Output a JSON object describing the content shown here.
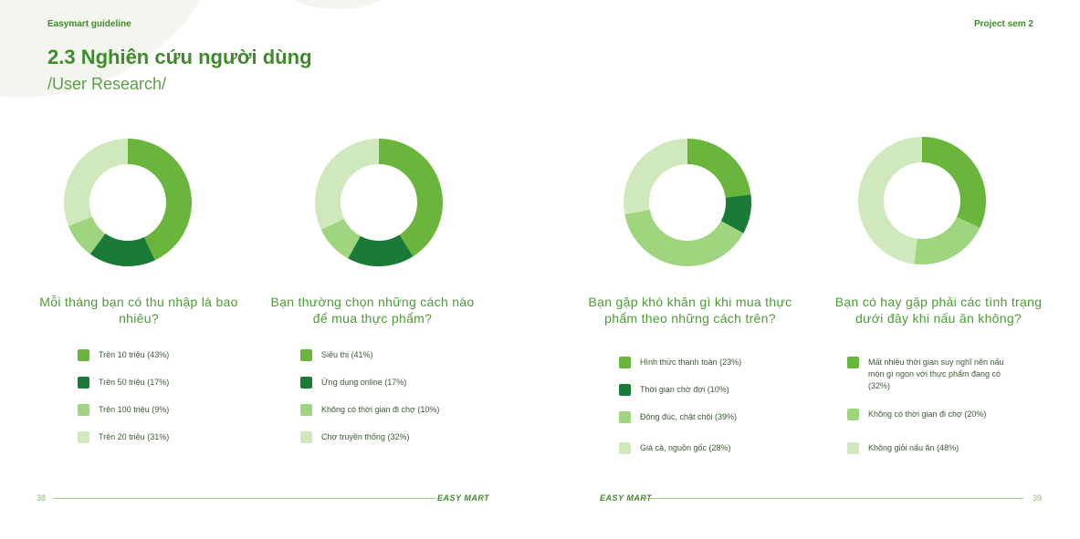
{
  "header": {
    "left_label": "Easymart guideline",
    "right_label": "Project sem 2"
  },
  "title": "2.3 Nghiên cứu người dùng",
  "subtitle": "/User Research/",
  "charts": [
    {
      "question": "Mỗi tháng bạn có thu nhập là bao nhiêu?",
      "legend": [
        {
          "label": "Trên 10 triệu (43%)",
          "color": "#6ab53c"
        },
        {
          "label": "Trên 50 triệu (17%)",
          "color": "#1a7a38"
        },
        {
          "label": "Trên 100 triệu (9%)",
          "color": "#9fd57e"
        },
        {
          "label": "Trên 20 triệu (31%)",
          "color": "#cfe9bd"
        }
      ]
    },
    {
      "question": "Bạn thường chọn những cách nào để mua thực phẩm?",
      "legend": [
        {
          "label": "Siêu thị (41%)",
          "color": "#6ab53c"
        },
        {
          "label": "Ứng dụng online (17%)",
          "color": "#1a7a38"
        },
        {
          "label": "Không có thời gian đi chợ (10%)",
          "color": "#9fd57e"
        },
        {
          "label": "Chợ truyền thống (32%)",
          "color": "#cfe9bd"
        }
      ]
    },
    {
      "question": "Bạn gặp khó khăn gì khi mua thực phẩm theo những  cách trên?",
      "legend": [
        {
          "label": "Hình thức thanh toán (23%)",
          "color": "#6ab53c"
        },
        {
          "label": "Thời gian chờ đợi (10%)",
          "color": "#1a7a38"
        },
        {
          "label": "Đông đúc, chật chội (39%)",
          "color": "#9fd57e"
        },
        {
          "label": "Giá cả, nguồn gốc (28%)",
          "color": "#cfe9bd"
        }
      ]
    },
    {
      "question": "Bạn có hay gặp phải các tình trạng dưới đây khi nấu ăn không?",
      "legend": [
        {
          "label": "Mất nhiều thời gian suy nghĩ nên nấu món gì ngon với thực phẩm đang có (32%)",
          "color": "#6ab53c"
        },
        {
          "label": "Không có thời gian đi chợ (20%)",
          "color": "#9fd57e"
        },
        {
          "label": "Không giỏi nấu ăn (48%)",
          "color": "#cfe9bd"
        }
      ]
    }
  ],
  "chart_data": [
    {
      "type": "pie",
      "categories": [
        "Trên 10 triệu",
        "Trên 50 triệu",
        "Trên 100 triệu",
        "Trên 20 triệu"
      ],
      "values": [
        43,
        17,
        9,
        31
      ],
      "colors": [
        "#6ab53c",
        "#1a7a38",
        "#9fd57e",
        "#cfe9bd"
      ],
      "donut": true
    },
    {
      "type": "pie",
      "categories": [
        "Siêu thị",
        "Ứng dụng online",
        "Không có thời gian đi chợ",
        "Chợ truyền thống"
      ],
      "values": [
        41,
        17,
        10,
        32
      ],
      "colors": [
        "#6ab53c",
        "#1a7a38",
        "#9fd57e",
        "#cfe9bd"
      ],
      "donut": true
    },
    {
      "type": "pie",
      "categories": [
        "Hình thức thanh toán",
        "Thời gian chờ đợi",
        "Đông đúc, chật chội",
        "Giá cả, nguồn gốc"
      ],
      "values": [
        23,
        10,
        39,
        28
      ],
      "colors": [
        "#6ab53c",
        "#1a7a38",
        "#9fd57e",
        "#cfe9bd"
      ],
      "donut": true
    },
    {
      "type": "pie",
      "categories": [
        "Mất nhiều thời gian suy nghĩ nên nấu món gì ngon với thực phẩm đang có",
        "Không có thời gian đi chợ",
        "Không giỏi nấu ăn"
      ],
      "values": [
        32,
        20,
        48
      ],
      "colors": [
        "#6ab53c",
        "#9fd57e",
        "#cfe9bd"
      ],
      "donut": true
    }
  ],
  "footer": {
    "left_page": "38",
    "right_page": "39",
    "logo_text": "EASY MART"
  }
}
